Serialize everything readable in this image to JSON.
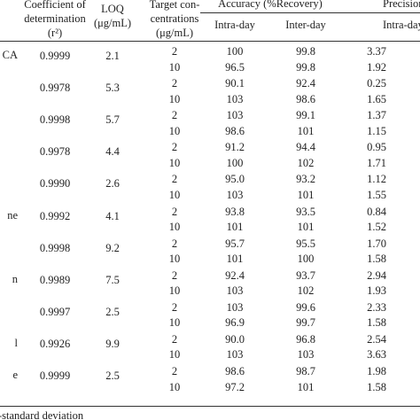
{
  "table": {
    "headers": {
      "coefficient": [
        "Coefficient of",
        "determination",
        "(r²)"
      ],
      "loq": [
        "LOQ",
        "(μg/mL)"
      ],
      "target": [
        "Target con-",
        "centrations",
        "(μg/mL)"
      ],
      "accuracy": "Accuracy (%Recovery)",
      "accuracy_intra": "Intra-day",
      "accuracy_inter": "Inter-day",
      "precision": "Precision",
      "precision_intra": "Intra-day"
    },
    "groups": [
      {
        "name": "CA",
        "r2": "0.9999",
        "loq": "2.1",
        "rows": [
          [
            "2",
            "100",
            "99.8",
            "3.37"
          ],
          [
            "10",
            "96.5",
            "99.8",
            "1.92"
          ]
        ]
      },
      {
        "name": null,
        "r2": "0.9978",
        "loq": "5.3",
        "rows": [
          [
            "2",
            "90.1",
            "92.4",
            "0.25"
          ],
          [
            "10",
            "103",
            "98.6",
            "1.65"
          ]
        ]
      },
      {
        "name": null,
        "r2": "0.9998",
        "loq": "5.7",
        "rows": [
          [
            "2",
            "103",
            "99.1",
            "1.37"
          ],
          [
            "10",
            "98.6",
            "101",
            "1.15"
          ]
        ]
      },
      {
        "name": null,
        "r2": "0.9978",
        "loq": "4.4",
        "rows": [
          [
            "2",
            "91.2",
            "94.4",
            "0.95"
          ],
          [
            "10",
            "100",
            "102",
            "1.71"
          ]
        ]
      },
      {
        "name": null,
        "r2": "0.9990",
        "loq": "2.6",
        "rows": [
          [
            "2",
            "95.0",
            "93.2",
            "1.12"
          ],
          [
            "10",
            "103",
            "101",
            "1.55"
          ]
        ]
      },
      {
        "name": "ne",
        "r2": "0.9992",
        "loq": "4.1",
        "rows": [
          [
            "2",
            "93.8",
            "93.5",
            "0.84"
          ],
          [
            "10",
            "101",
            "101",
            "1.52"
          ]
        ]
      },
      {
        "name": null,
        "r2": "0.9998",
        "loq": "9.2",
        "rows": [
          [
            "2",
            "95.7",
            "95.5",
            "1.70"
          ],
          [
            "10",
            "101",
            "100",
            "1.58"
          ]
        ]
      },
      {
        "name": "n",
        "r2": "0.9989",
        "loq": "7.5",
        "rows": [
          [
            "2",
            "92.4",
            "93.7",
            "2.94"
          ],
          [
            "10",
            "103",
            "102",
            "1.93"
          ]
        ]
      },
      {
        "name": null,
        "r2": "0.9997",
        "loq": "2.5",
        "rows": [
          [
            "2",
            "103",
            "99.6",
            "2.33"
          ],
          [
            "10",
            "96.9",
            "99.7",
            "1.58"
          ]
        ]
      },
      {
        "name": "l",
        "r2": "0.9926",
        "loq": "9.9",
        "rows": [
          [
            "2",
            "90.0",
            "96.8",
            "2.54"
          ],
          [
            "10",
            "103",
            "103",
            "3.63"
          ]
        ]
      },
      {
        "name": "e",
        "r2": "0.9999",
        "loq": "2.5",
        "rows": [
          [
            "2",
            "98.6",
            "98.7",
            "1.98"
          ],
          [
            "10",
            "97.2",
            "101",
            "1.58"
          ]
        ]
      }
    ],
    "footnote": "-standard deviation"
  }
}
